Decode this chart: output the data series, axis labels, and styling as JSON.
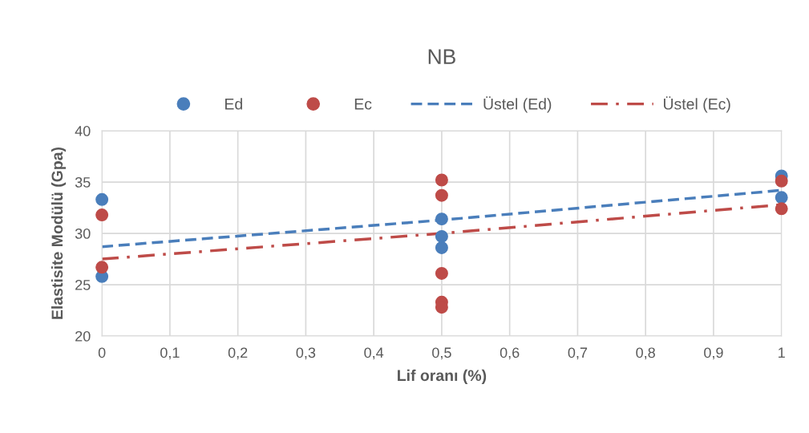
{
  "chart_data": {
    "type": "scatter",
    "title": "NB",
    "xlabel": "Lif oranı (%)",
    "ylabel": "Elastisite Modülü (Gpa)",
    "xlim": [
      0,
      1
    ],
    "xticks": [
      {
        "value": 0,
        "label": "0"
      },
      {
        "value": 0.1,
        "label": "0,1"
      },
      {
        "value": 0.2,
        "label": "0,2"
      },
      {
        "value": 0.3,
        "label": "0,3"
      },
      {
        "value": 0.4,
        "label": "0,4"
      },
      {
        "value": 0.5,
        "label": "0,5"
      },
      {
        "value": 0.6,
        "label": "0,6"
      },
      {
        "value": 0.7,
        "label": "0,7"
      },
      {
        "value": 0.8,
        "label": "0,8"
      },
      {
        "value": 0.9,
        "label": "0,9"
      },
      {
        "value": 1,
        "label": "1"
      }
    ],
    "ylim": [
      20,
      40
    ],
    "yticks": [
      20,
      25,
      30,
      35,
      40
    ],
    "grid": true,
    "legend": "top",
    "marker": "circle",
    "series": [
      {
        "name": "Ed",
        "color": "#4a7ebb",
        "x": [
          0,
          0,
          0.5,
          0.5,
          0.5,
          1,
          1
        ],
        "values": [
          33.3,
          25.8,
          31.4,
          29.7,
          28.6,
          35.6,
          33.5
        ]
      },
      {
        "name": "Ec",
        "color": "#be4b48",
        "x": [
          0,
          0,
          0.5,
          0.5,
          0.5,
          0.5,
          0.5,
          1,
          1
        ],
        "values": [
          31.8,
          26.7,
          35.2,
          33.7,
          26.1,
          23.3,
          22.8,
          35.1,
          32.4
        ]
      },
      {
        "name": "Üstel (Ed)",
        "type": "line",
        "line_style": "dashed",
        "marker": "none",
        "color": "#4a7ebb",
        "x": [
          0,
          0.5,
          1
        ],
        "values": [
          28.7,
          31.3,
          34.2
        ]
      },
      {
        "name": "Üstel (Ec)",
        "type": "line",
        "line_style": "dashdot",
        "marker": "none",
        "color": "#be4b48",
        "x": [
          0,
          0.5,
          1
        ],
        "values": [
          27.5,
          30.0,
          32.8
        ]
      }
    ]
  }
}
